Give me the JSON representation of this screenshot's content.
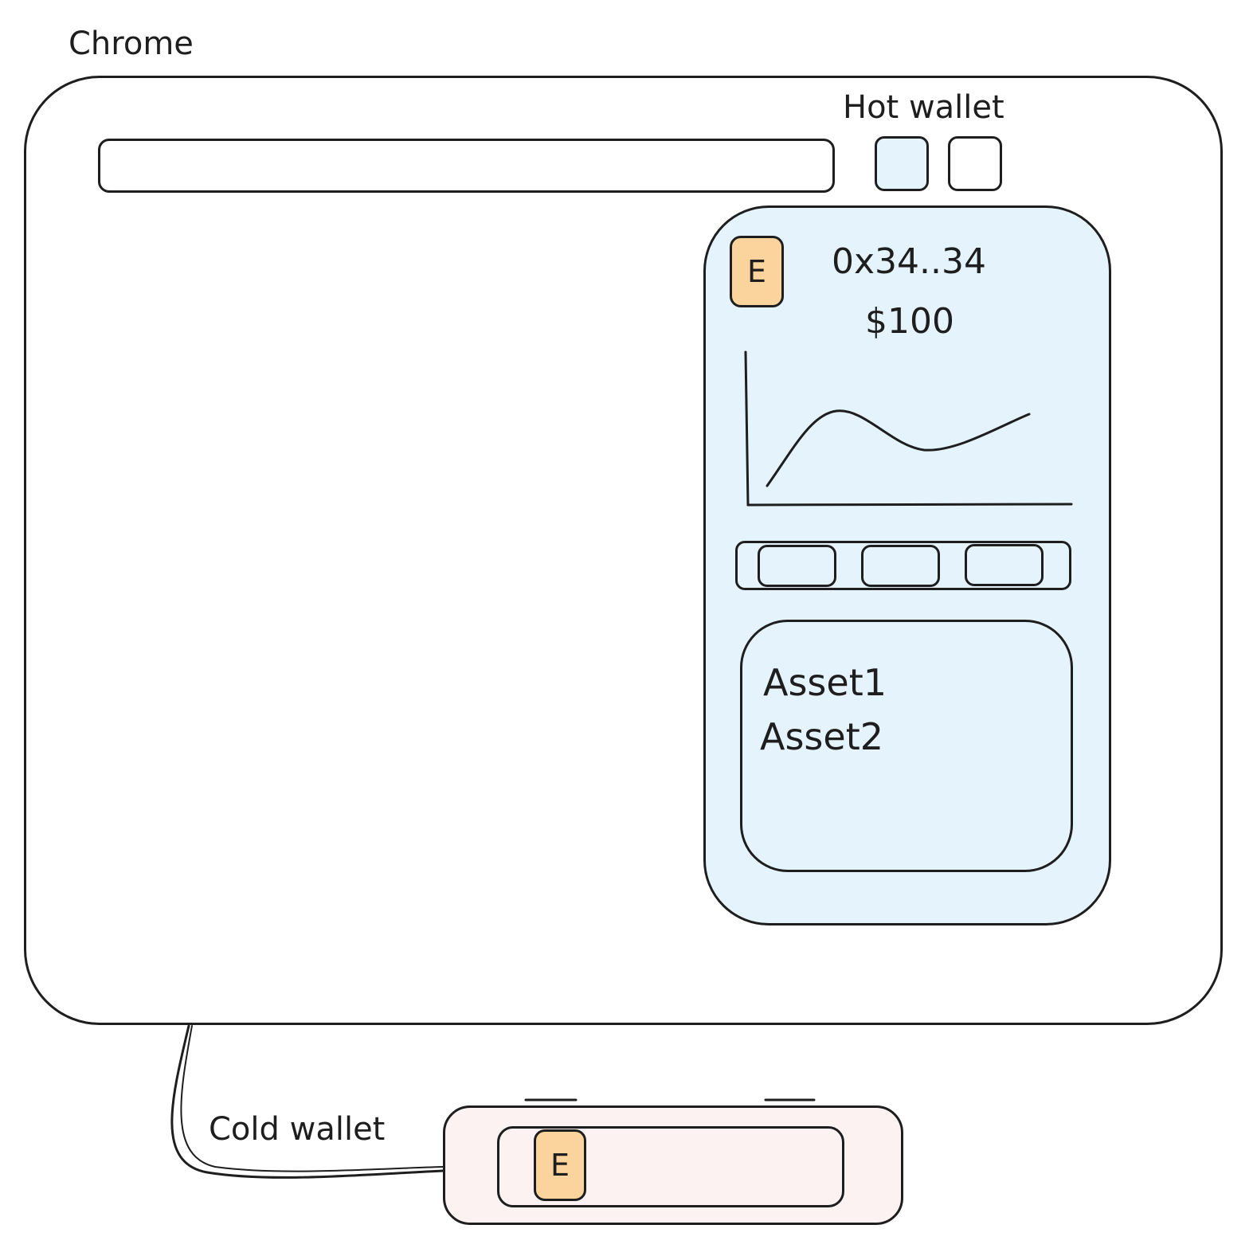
{
  "labels": {
    "chrome": "Chrome",
    "hot_wallet": "Hot wallet",
    "cold_wallet": "Cold wallet"
  },
  "hot_wallet_popup": {
    "token_icon": "E",
    "address": "0x34..34",
    "balance": "$100",
    "assets": [
      "Asset1",
      "Asset2"
    ]
  },
  "cold_wallet_device": {
    "token_icon": "E"
  },
  "colors": {
    "stroke": "#1e1e1e",
    "hot_wallet_fill": "#e5f3fd",
    "cold_wallet_fill": "#fdf2f2",
    "token_fill": "#fbd49d"
  }
}
